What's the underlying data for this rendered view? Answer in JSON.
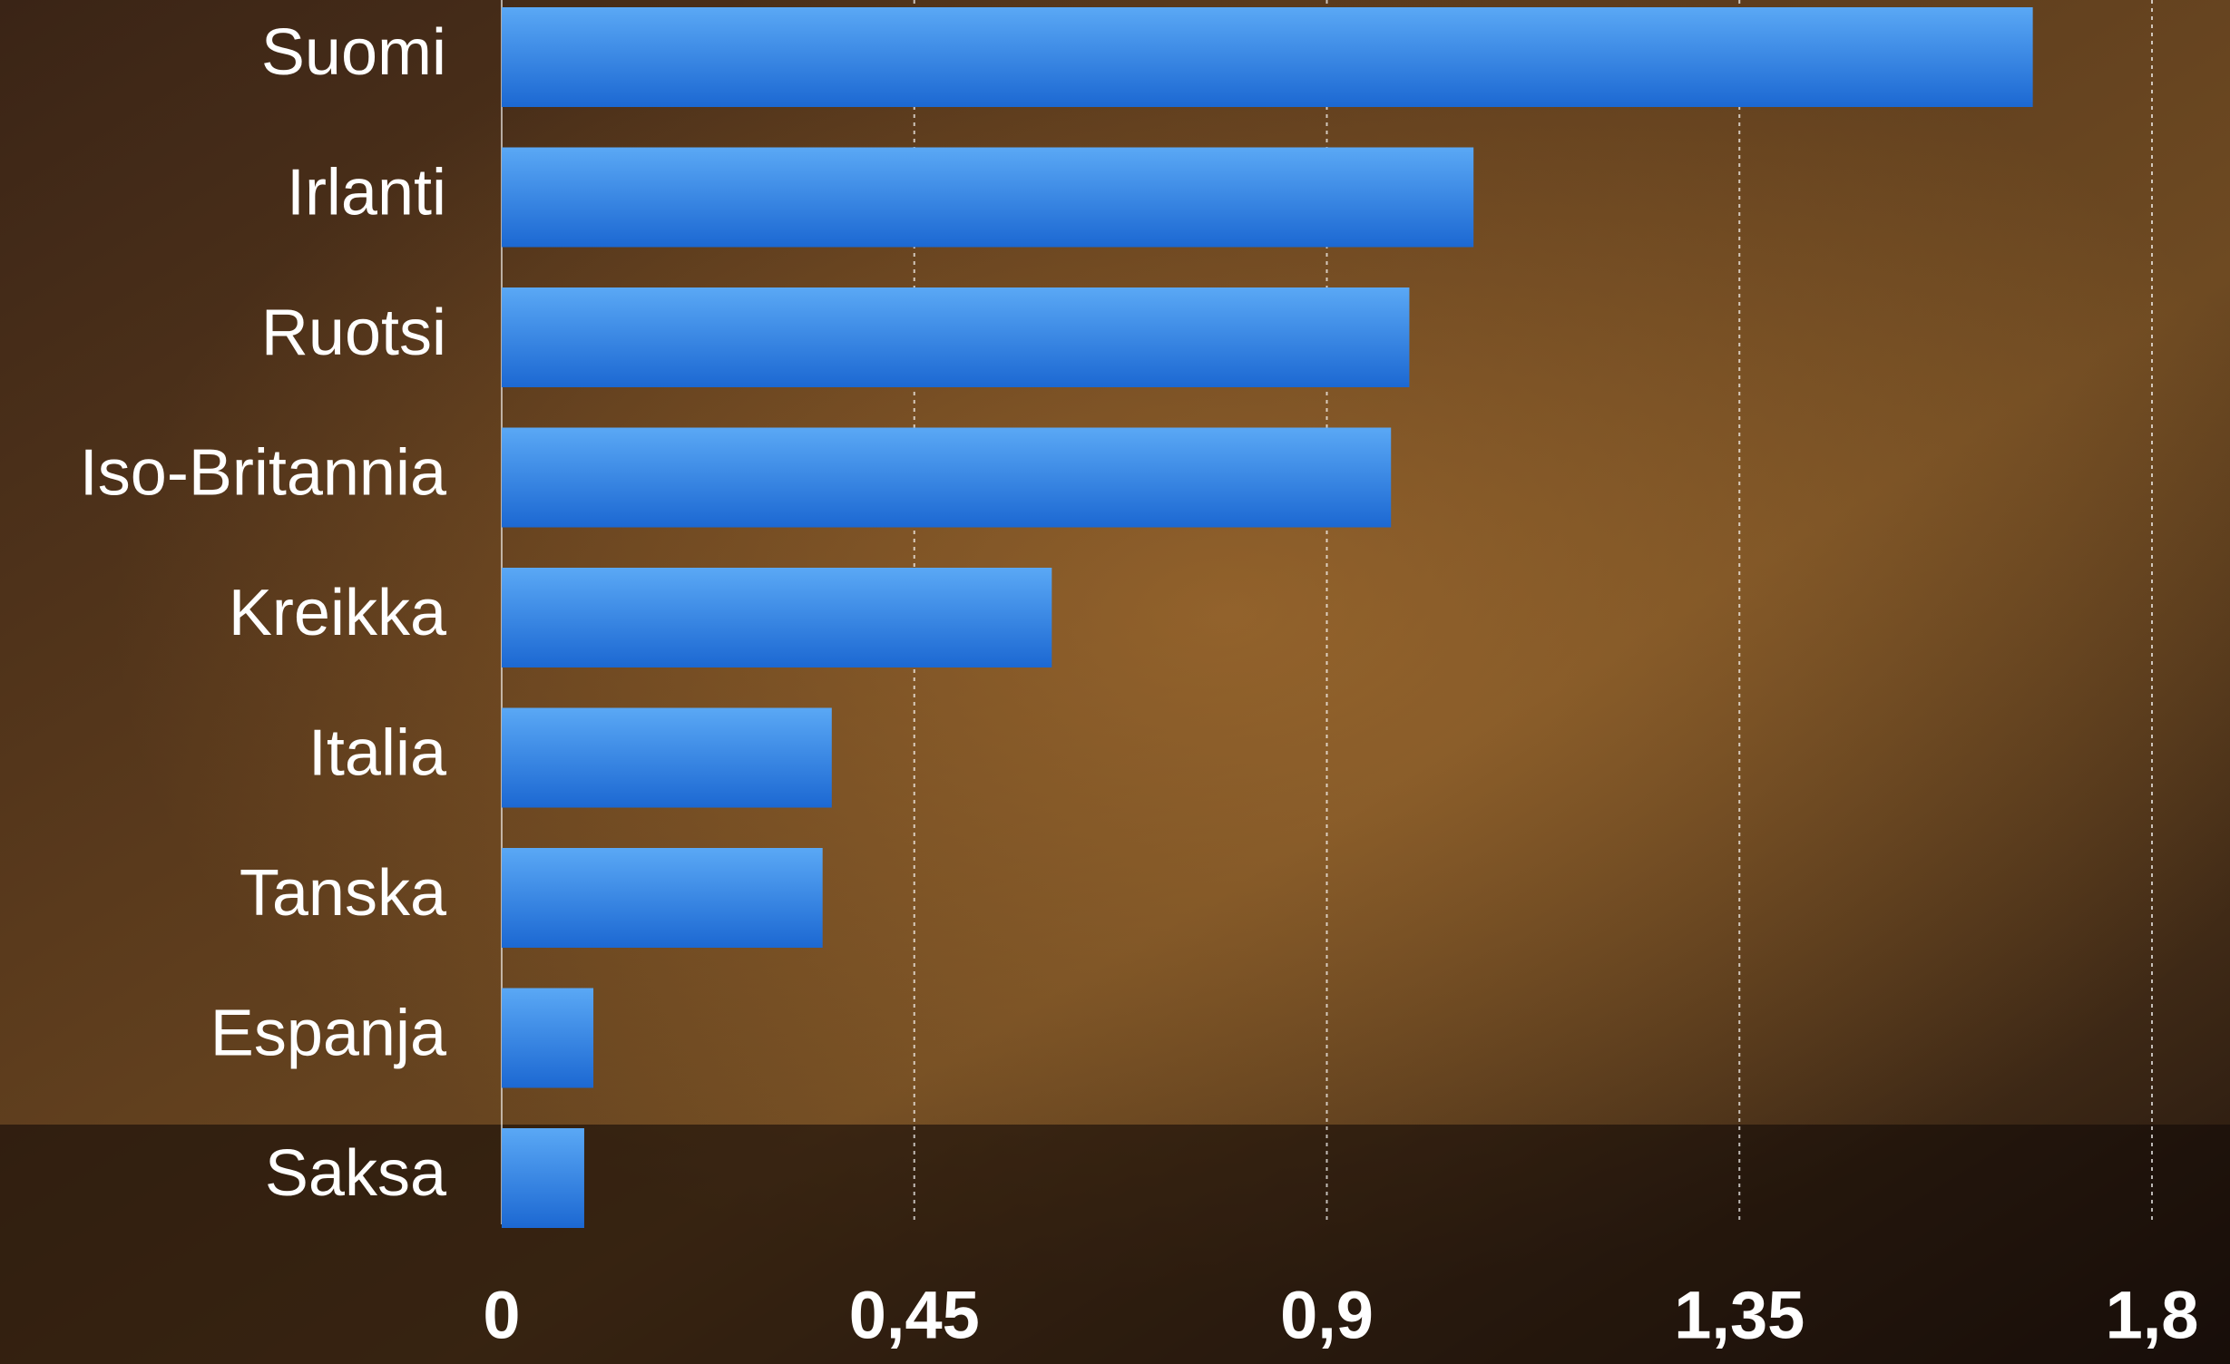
{
  "chart_data": {
    "type": "barh",
    "categories": [
      "Suomi",
      "Irlanti",
      "Ruotsi",
      "Iso-Britannia",
      "Kreikka",
      "Italia",
      "Tanska",
      "Espanja",
      "Saksa"
    ],
    "values": [
      1.67,
      1.06,
      0.99,
      0.97,
      0.6,
      0.36,
      0.35,
      0.1,
      0.09
    ],
    "color": "#2b7de0",
    "xlim": [
      0,
      1.8
    ],
    "xticks": [
      0,
      {
        "value": 0.45,
        "label": "0,45"
      },
      {
        "value": 0.9,
        "label": "0,9"
      },
      {
        "value": 1.35,
        "label": "1,35"
      },
      {
        "value": 1.8,
        "label": "1,8"
      }
    ],
    "grid": true
  }
}
